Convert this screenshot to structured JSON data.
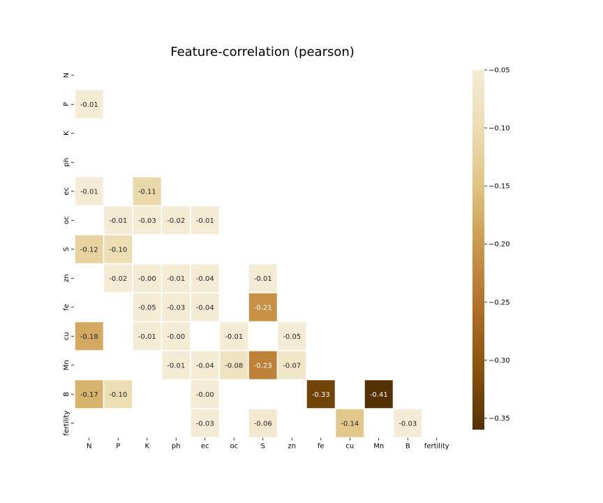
{
  "chart_data": {
    "type": "heatmap",
    "title": "Feature-correlation (pearson)",
    "rows": [
      "N",
      "P",
      "K",
      "ph",
      "ec",
      "oc",
      "S",
      "zn",
      "fe",
      "cu",
      "Mn",
      "B",
      "fertility"
    ],
    "columns": [
      "N",
      "P",
      "K",
      "ph",
      "ec",
      "oc",
      "S",
      "zn",
      "fe",
      "cu",
      "Mn",
      "B",
      "fertility"
    ],
    "cells": [
      {
        "row": "P",
        "col": "N",
        "value": -0.01,
        "label": "-0.01"
      },
      {
        "row": "ec",
        "col": "N",
        "value": -0.01,
        "label": "-0.01"
      },
      {
        "row": "ec",
        "col": "K",
        "value": -0.11,
        "label": "-0.11"
      },
      {
        "row": "oc",
        "col": "P",
        "value": -0.01,
        "label": "-0.01"
      },
      {
        "row": "oc",
        "col": "K",
        "value": -0.03,
        "label": "-0.03"
      },
      {
        "row": "oc",
        "col": "ph",
        "value": -0.02,
        "label": "-0.02"
      },
      {
        "row": "oc",
        "col": "ec",
        "value": -0.01,
        "label": "-0.01"
      },
      {
        "row": "S",
        "col": "N",
        "value": -0.12,
        "label": "-0.12"
      },
      {
        "row": "S",
        "col": "P",
        "value": -0.1,
        "label": "-0.10"
      },
      {
        "row": "zn",
        "col": "P",
        "value": -0.02,
        "label": "-0.02"
      },
      {
        "row": "zn",
        "col": "K",
        "value": -0.004,
        "label": "-0.00"
      },
      {
        "row": "zn",
        "col": "ph",
        "value": -0.01,
        "label": "-0.01"
      },
      {
        "row": "zn",
        "col": "ec",
        "value": -0.04,
        "label": "-0.04"
      },
      {
        "row": "zn",
        "col": "S",
        "value": -0.01,
        "label": "-0.01"
      },
      {
        "row": "fe",
        "col": "K",
        "value": -0.05,
        "label": "-0.05"
      },
      {
        "row": "fe",
        "col": "ph",
        "value": -0.03,
        "label": "-0.03"
      },
      {
        "row": "fe",
        "col": "ec",
        "value": -0.04,
        "label": "-0.04"
      },
      {
        "row": "fe",
        "col": "S",
        "value": -0.21,
        "label": "-0.21"
      },
      {
        "row": "cu",
        "col": "N",
        "value": -0.18,
        "label": "-0.18"
      },
      {
        "row": "cu",
        "col": "K",
        "value": -0.01,
        "label": "-0.01"
      },
      {
        "row": "cu",
        "col": "ph",
        "value": -0.004,
        "label": "-0.00"
      },
      {
        "row": "cu",
        "col": "oc",
        "value": -0.01,
        "label": "-0.01"
      },
      {
        "row": "cu",
        "col": "zn",
        "value": -0.05,
        "label": "-0.05"
      },
      {
        "row": "Mn",
        "col": "ph",
        "value": -0.01,
        "label": "-0.01"
      },
      {
        "row": "Mn",
        "col": "ec",
        "value": -0.04,
        "label": "-0.04"
      },
      {
        "row": "Mn",
        "col": "oc",
        "value": -0.08,
        "label": "-0.08"
      },
      {
        "row": "Mn",
        "col": "S",
        "value": -0.23,
        "label": "-0.23"
      },
      {
        "row": "Mn",
        "col": "zn",
        "value": -0.07,
        "label": "-0.07"
      },
      {
        "row": "B",
        "col": "N",
        "value": -0.17,
        "label": "-0.17"
      },
      {
        "row": "B",
        "col": "P",
        "value": -0.1,
        "label": "-0.10"
      },
      {
        "row": "B",
        "col": "ec",
        "value": -0.004,
        "label": "-0.00"
      },
      {
        "row": "B",
        "col": "fe",
        "value": -0.33,
        "label": "-0.33"
      },
      {
        "row": "B",
        "col": "Mn",
        "value": -0.41,
        "label": "-0.41"
      },
      {
        "row": "fertility",
        "col": "ec",
        "value": -0.03,
        "label": "-0.03"
      },
      {
        "row": "fertility",
        "col": "S",
        "value": -0.06,
        "label": "-0.06"
      },
      {
        "row": "fertility",
        "col": "cu",
        "value": -0.14,
        "label": "-0.14"
      },
      {
        "row": "fertility",
        "col": "B",
        "value": -0.03,
        "label": "-0.03"
      }
    ],
    "colorbar": {
      "range": [
        -0.36,
        -0.05
      ],
      "ticks": [
        -0.05,
        -0.1,
        -0.15,
        -0.2,
        -0.25,
        -0.3,
        -0.35
      ],
      "tick_labels": [
        "−0.05",
        "−0.10",
        "−0.15",
        "−0.20",
        "−0.25",
        "−0.30",
        "−0.35"
      ],
      "colormap": [
        "#f5ecd6",
        "#eddcb2",
        "#dfc17e",
        "#c9954a",
        "#b06e25",
        "#8a520e",
        "#543005"
      ]
    }
  }
}
